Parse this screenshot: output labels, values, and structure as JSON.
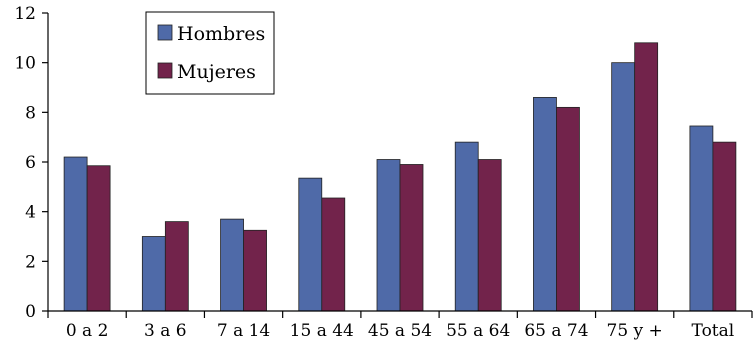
{
  "chart_data": {
    "type": "bar",
    "categories": [
      "0 a 2",
      "3 a 6",
      "7 a 14",
      "15 a 44",
      "45 a 54",
      "55 a 64",
      "65 a 74",
      "75 y +",
      "Total"
    ],
    "series": [
      {
        "name": "Hombres",
        "color": "#4f6aa8",
        "values": [
          6.2,
          3.0,
          3.7,
          5.35,
          6.1,
          6.8,
          8.6,
          10.0,
          7.45
        ]
      },
      {
        "name": "Mujeres",
        "color": "#72234b",
        "values": [
          5.85,
          3.6,
          3.25,
          4.55,
          5.9,
          6.1,
          8.2,
          10.8,
          6.8
        ]
      }
    ],
    "yticks": [
      0,
      2,
      4,
      6,
      8,
      10,
      12
    ],
    "ylim": [
      0,
      12
    ],
    "title": "",
    "xlabel": "",
    "ylabel": "",
    "grid": false,
    "legend_position": "top-left"
  }
}
